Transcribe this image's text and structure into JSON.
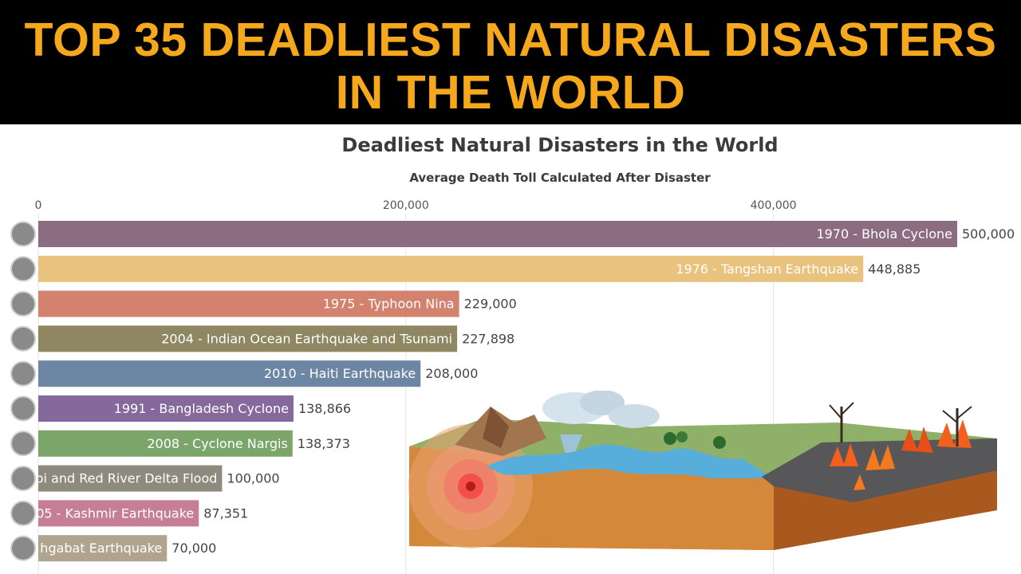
{
  "banner": {
    "line1": "TOP 35 DEADLIEST NATURAL DISASTERS",
    "line2": "IN THE WORLD"
  },
  "chart_data": {
    "type": "bar",
    "orientation": "horizontal",
    "title": "Deadliest Natural Disasters in the World",
    "subtitle": "Average Death Toll Calculated After Disaster",
    "xlim": [
      0,
      500000
    ],
    "x_ticks": [
      "0",
      "200,000",
      "400,000"
    ],
    "x_tick_values": [
      0,
      200000,
      400000
    ],
    "grid": true,
    "bars": [
      {
        "label": "1970 - Bhola Cyclone",
        "value": 500000,
        "value_label": "500,000",
        "color": "#8C6C80"
      },
      {
        "label": "1976 - Tangshan Earthquake",
        "value": 448885,
        "value_label": "448,885",
        "color": "#E9C27E"
      },
      {
        "label": "1975 - Typhoon Nina",
        "value": 229000,
        "value_label": "229,000",
        "color": "#D3826E"
      },
      {
        "label": "2004 - Indian Ocean Earthquake and Tsunami",
        "value": 227898,
        "value_label": "227,898",
        "color": "#8E8761"
      },
      {
        "label": "2010 - Haiti Earthquake",
        "value": 208000,
        "value_label": "208,000",
        "color": "#6D86A3"
      },
      {
        "label": "1991 - Bangladesh Cyclone",
        "value": 138866,
        "value_label": "138,866",
        "color": "#85699D"
      },
      {
        "label": "2008 - Cyclone Nargis",
        "value": 138373,
        "value_label": "138,373",
        "color": "#7CA56A"
      },
      {
        "label": "pi and Red River Delta Flood",
        "value": 100000,
        "value_label": "100,000",
        "color": "#8E8A7E"
      },
      {
        "label": "05 - Kashmir Earthquake",
        "value": 87351,
        "value_label": "87,351",
        "color": "#C57E96"
      },
      {
        "label": "hgabat Earthquake",
        "value": 70000,
        "value_label": "70,000",
        "color": "#B0A48E"
      }
    ]
  },
  "illustration": {
    "icon": "natural-disasters-landscape-icon"
  }
}
